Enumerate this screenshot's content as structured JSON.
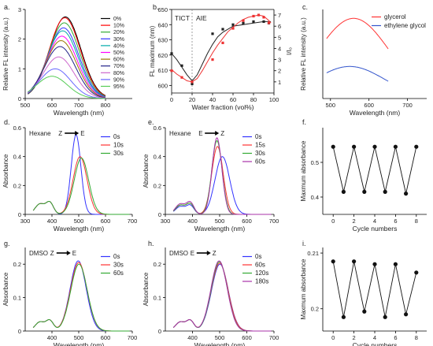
{
  "chart_data": [
    {
      "panel": "a",
      "type": "line",
      "xlabel": "Wavelength (nm)",
      "ylabel": "Relative FL intensity (a.u.)",
      "xlim": [
        500,
        900
      ],
      "ylim": [
        0,
        3
      ],
      "xticks": [
        500,
        600,
        700,
        800
      ],
      "yticks": [
        0,
        1,
        2,
        3
      ],
      "legend_position": "right",
      "series_shape": "gaussian",
      "series": [
        {
          "name": "0%",
          "color": "#000000",
          "peak": 650,
          "height": 2.75,
          "width": 58
        },
        {
          "name": "10%",
          "color": "#ff0000",
          "peak": 648,
          "height": 2.72,
          "width": 58
        },
        {
          "name": "20%",
          "color": "#33aa33",
          "peak": 646,
          "height": 2.55,
          "width": 58
        },
        {
          "name": "30%",
          "color": "#3333ff",
          "peak": 643,
          "height": 2.38,
          "width": 58
        },
        {
          "name": "40%",
          "color": "#00aaaa",
          "peak": 640,
          "height": 2.28,
          "width": 58
        },
        {
          "name": "50%",
          "color": "#ff00ff",
          "peak": 637,
          "height": 2.1,
          "width": 58
        },
        {
          "name": "60%",
          "color": "#997700",
          "peak": 634,
          "height": 1.95,
          "width": 58
        },
        {
          "name": "70%",
          "color": "#222288",
          "peak": 630,
          "height": 1.75,
          "width": 58
        },
        {
          "name": "80%",
          "color": "#cc66cc",
          "peak": 625,
          "height": 1.4,
          "width": 58
        },
        {
          "name": "90%",
          "color": "#6666ff",
          "peak": 612,
          "height": 1.0,
          "width": 58
        },
        {
          "name": "95%",
          "color": "#55cc55",
          "peak": 600,
          "height": 0.75,
          "width": 58
        }
      ]
    },
    {
      "panel": "b",
      "type": "scatter",
      "xlabel": "Water fraction (vol%)",
      "ylabel": "FL maximum (nm)",
      "y2label": "I/I₀",
      "xlim": [
        0,
        100
      ],
      "ylim": [
        595,
        650
      ],
      "y2lim": [
        0,
        7.5
      ],
      "xticks": [
        0,
        20,
        40,
        60,
        80,
        100
      ],
      "yticks": [
        600,
        610,
        620,
        630,
        640,
        650
      ],
      "y2ticks": [
        1,
        2,
        3,
        4,
        5,
        6,
        7
      ],
      "annotations": [
        "TICT",
        "AIE"
      ],
      "divider_x": 20,
      "series": [
        {
          "name": "FL maximum",
          "axis": "left",
          "color": "#222222",
          "x": [
            0,
            10,
            20,
            40,
            50,
            60,
            70,
            80,
            90,
            95
          ],
          "y": [
            621,
            613,
            601,
            634,
            637,
            640,
            641,
            642,
            642,
            641
          ],
          "fit": [
            [
              0,
              621
            ],
            [
              5,
              617
            ],
            [
              10,
              612
            ],
            [
              15,
              607
            ],
            [
              20,
              603
            ],
            [
              25,
              607
            ],
            [
              30,
              614
            ],
            [
              35,
              621
            ],
            [
              40,
              627
            ],
            [
              45,
              632
            ],
            [
              50,
              635
            ],
            [
              55,
              637
            ],
            [
              60,
              639
            ],
            [
              70,
              640
            ],
            [
              80,
              641
            ],
            [
              90,
              642
            ],
            [
              97,
              642
            ]
          ]
        },
        {
          "name": "I/I₀",
          "axis": "right",
          "color": "#ee3333",
          "x": [
            0,
            10,
            20,
            40,
            50,
            60,
            70,
            80,
            85,
            90,
            95
          ],
          "y": [
            2.0,
            1.4,
            1.0,
            3.0,
            4.5,
            5.8,
            6.5,
            6.9,
            7.0,
            6.8,
            6.3
          ],
          "fit": [
            [
              0,
              2.1
            ],
            [
              5,
              1.7
            ],
            [
              10,
              1.4
            ],
            [
              15,
              1.1
            ],
            [
              20,
              1.0
            ],
            [
              25,
              1.3
            ],
            [
              30,
              2.0
            ],
            [
              35,
              2.8
            ],
            [
              40,
              3.6
            ],
            [
              45,
              4.3
            ],
            [
              50,
              4.9
            ],
            [
              55,
              5.5
            ],
            [
              60,
              5.9
            ],
            [
              65,
              6.3
            ],
            [
              70,
              6.6
            ],
            [
              75,
              6.8
            ],
            [
              80,
              6.9
            ],
            [
              85,
              7.0
            ],
            [
              90,
              6.9
            ],
            [
              95,
              6.5
            ],
            [
              97,
              6.3
            ]
          ]
        }
      ]
    },
    {
      "panel": "c",
      "type": "line",
      "xlabel": "Wavelength (nm)",
      "ylabel": "Relative FL intensity (a.u.)",
      "xlim": [
        480,
        750
      ],
      "ylim": [
        0,
        2
      ],
      "xticks": [
        500,
        600,
        700
      ],
      "legend_position": "top-right",
      "series_shape": "gaussian",
      "series": [
        {
          "name": "glycerol",
          "color": "#ff3333",
          "peak": 560,
          "height": 1.8,
          "width": 92
        },
        {
          "name": "ethylene glycol",
          "color": "#3355cc",
          "peak": 550,
          "height": 0.72,
          "width": 90
        }
      ]
    },
    {
      "panel": "d",
      "type": "line",
      "xlabel": "Wavelength (nm)",
      "ylabel": "Absorbance",
      "xlim": [
        300,
        700
      ],
      "ylim": [
        0,
        0.6
      ],
      "xticks": [
        300,
        400,
        500,
        600,
        700
      ],
      "yticks": [
        0.0,
        0.2,
        0.4,
        0.6
      ],
      "solvent": "Hexane",
      "switch": [
        "Z",
        "E"
      ],
      "legend_position": "right",
      "series_shape": "absorption",
      "series": [
        {
          "name": "0s",
          "color": "#3333ff",
          "peak": 490,
          "height": 0.55,
          "width": 18,
          "shoulder": 0.08
        },
        {
          "name": "10s",
          "color": "#ff3333",
          "peak": 505,
          "height": 0.4,
          "width": 26,
          "shoulder": 0.08
        },
        {
          "name": "30s",
          "color": "#33aa33",
          "peak": 510,
          "height": 0.39,
          "width": 27,
          "shoulder": 0.08
        }
      ]
    },
    {
      "panel": "e",
      "type": "line",
      "xlabel": "Wavelength (nm)",
      "ylabel": "Absorbance",
      "xlim": [
        300,
        700
      ],
      "ylim": [
        0,
        0.6
      ],
      "xticks": [
        300,
        400,
        500,
        600,
        700
      ],
      "yticks": [
        0.0,
        0.2,
        0.4,
        0.6
      ],
      "solvent": "Hexane",
      "switch": [
        "E",
        "Z"
      ],
      "legend_position": "right",
      "series_shape": "absorption",
      "series": [
        {
          "name": "0s",
          "color": "#3333ff",
          "peak": 510,
          "height": 0.4,
          "width": 27,
          "shoulder": 0.06
        },
        {
          "name": "15s",
          "color": "#ff3333",
          "peak": 492,
          "height": 0.47,
          "width": 21,
          "shoulder": 0.07
        },
        {
          "name": "30s",
          "color": "#33aa33",
          "peak": 490,
          "height": 0.51,
          "width": 19,
          "shoulder": 0.07
        },
        {
          "name": "60s",
          "color": "#aa33aa",
          "peak": 490,
          "height": 0.53,
          "width": 18,
          "shoulder": 0.08
        }
      ]
    },
    {
      "panel": "f",
      "type": "line",
      "xlabel": "Cycle numbers",
      "ylabel": "Maxmum absorbance",
      "xlim": [
        -1,
        9
      ],
      "ylim": [
        0.35,
        0.6
      ],
      "xticks": [
        0,
        2,
        4,
        6,
        8
      ],
      "yticks": [
        0.4,
        0.5
      ],
      "series": [
        {
          "name": "",
          "color": "#111111",
          "x": [
            0,
            1,
            2,
            3,
            4,
            5,
            6,
            7,
            8
          ],
          "y": [
            0.545,
            0.415,
            0.545,
            0.415,
            0.545,
            0.415,
            0.545,
            0.41,
            0.545
          ]
        }
      ]
    },
    {
      "panel": "g",
      "type": "line",
      "xlabel": "Wavelength (nm)",
      "ylabel": "Absorbance",
      "xlim": [
        300,
        700
      ],
      "ylim": [
        0,
        0.25
      ],
      "xticks": [
        400,
        500,
        600,
        700
      ],
      "yticks": [
        0.0,
        0.1,
        0.2
      ],
      "solvent": "DMSO",
      "switch": [
        "Z",
        "E"
      ],
      "legend_position": "right",
      "series_shape": "absorption",
      "series": [
        {
          "name": "0s",
          "color": "#3333ff",
          "peak": 498,
          "height": 0.21,
          "width": 30,
          "shoulder": 0.03
        },
        {
          "name": "30s",
          "color": "#ff3333",
          "peak": 500,
          "height": 0.205,
          "width": 31,
          "shoulder": 0.03
        },
        {
          "name": "60s",
          "color": "#33aa33",
          "peak": 501,
          "height": 0.2,
          "width": 31,
          "shoulder": 0.03
        }
      ]
    },
    {
      "panel": "h",
      "type": "line",
      "xlabel": "Wavelength (nm)",
      "ylabel": "Absorbance",
      "xlim": [
        300,
        700
      ],
      "ylim": [
        0,
        0.25
      ],
      "xticks": [
        400,
        500,
        600,
        700
      ],
      "yticks": [
        0.0,
        0.1,
        0.2
      ],
      "solvent": "DMSO",
      "switch": [
        "E",
        "Z"
      ],
      "legend_position": "right",
      "series_shape": "absorption",
      "series": [
        {
          "name": "0s",
          "color": "#3333ff",
          "peak": 501,
          "height": 0.2,
          "width": 31,
          "shoulder": 0.03
        },
        {
          "name": "60s",
          "color": "#ff3333",
          "peak": 500,
          "height": 0.203,
          "width": 31,
          "shoulder": 0.03
        },
        {
          "name": "120s",
          "color": "#33aa33",
          "peak": 499,
          "height": 0.207,
          "width": 30,
          "shoulder": 0.03
        },
        {
          "name": "180s",
          "color": "#aa33aa",
          "peak": 498,
          "height": 0.21,
          "width": 30,
          "shoulder": 0.03
        }
      ]
    },
    {
      "panel": "i",
      "type": "line",
      "xlabel": "Cycle numbers",
      "ylabel": "Maxmum absorbance",
      "xlim": [
        -1,
        9
      ],
      "ylim": [
        0.196,
        0.211
      ],
      "xticks": [
        0,
        2,
        4,
        6,
        8
      ],
      "yticks": [
        0.2,
        0.21
      ],
      "ytick_labels": [
        "0.2",
        "0.21"
      ],
      "series": [
        {
          "name": "",
          "color": "#111111",
          "x": [
            0,
            1,
            2,
            3,
            4,
            5,
            6,
            7,
            8
          ],
          "y": [
            0.2085,
            0.1985,
            0.2085,
            0.1995,
            0.208,
            0.1985,
            0.208,
            0.199,
            0.2065
          ]
        }
      ]
    }
  ]
}
